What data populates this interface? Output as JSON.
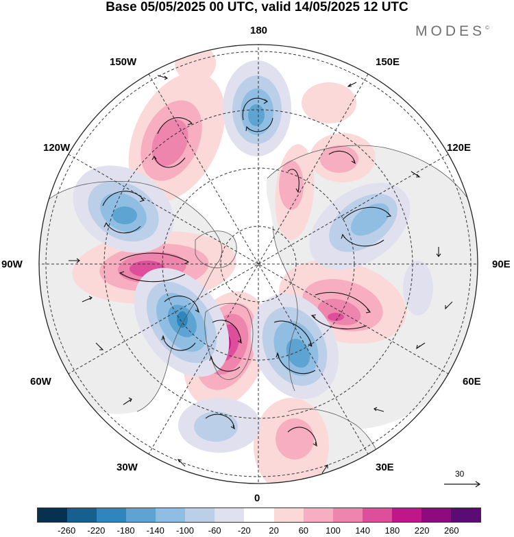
{
  "header": {
    "title": "Base 05/05/2025 00 UTC, valid 14/05/2025 12 UTC"
  },
  "brand": {
    "text": "MODES",
    "mark": "©"
  },
  "longitude_labels": {
    "top": "180",
    "bottom": "0",
    "left": "90W",
    "right": "90E",
    "upper_left_1": "150W",
    "upper_left_2": "120W",
    "upper_right_1": "150E",
    "upper_right_2": "120E",
    "lower_left_1": "60W",
    "lower_left_2": "30W",
    "lower_right_1": "60E",
    "lower_right_2": "30E"
  },
  "reference_vector": {
    "label": "30"
  },
  "colorbar": {
    "tick_labels": [
      "-260",
      "-220",
      "-180",
      "-140",
      "-100",
      "-60",
      "-20",
      "20",
      "60",
      "100",
      "140",
      "180",
      "220",
      "260"
    ],
    "colors": [
      "#08304f",
      "#15608f",
      "#2f86bd",
      "#5da4d2",
      "#90bde2",
      "#bccfe8",
      "#e1e0ef",
      "#ffffff",
      "#fbd9d9",
      "#f6aec0",
      "#ee85ad",
      "#dd4f9b",
      "#bf168a",
      "#8e0b7f",
      "#5a0c74"
    ]
  },
  "map_colors": {
    "land": "#ededed",
    "ocean": "#ffffff",
    "positive_1": "#fbd9d9",
    "positive_2": "#f6aec0",
    "positive_3": "#ee85ad",
    "positive_4": "#dd4f9b",
    "positive_5": "#bf168a",
    "negative_1": "#e1e0ef",
    "negative_2": "#bccfe8",
    "negative_3": "#90bde2",
    "negative_4": "#5da4d2",
    "negative_5": "#2f86bd"
  }
}
